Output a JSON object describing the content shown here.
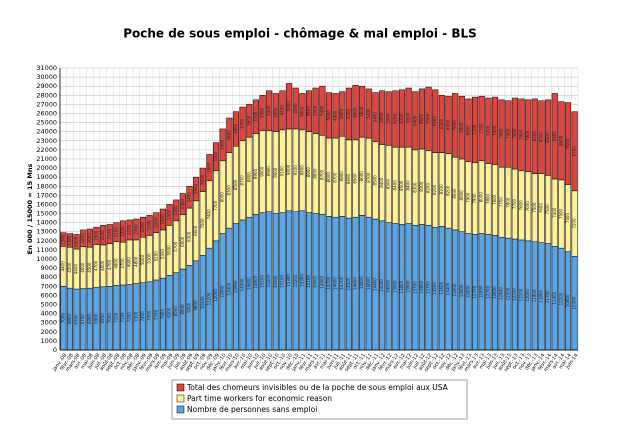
{
  "chart_data": {
    "type": "stacked_bar",
    "title": "Poche de sous emploi - chômage & mal emploi - BLS",
    "y_label": "En 000 / 15000 = 15 Mns",
    "categories": [
      "janv.-08",
      "févr.-08",
      "mars-08",
      "avr.-08",
      "mai-08",
      "juin-08",
      "juil.-08",
      "août-08",
      "sept.-08",
      "oct.-08",
      "nov.-08",
      "déc.-08",
      "janv.-09",
      "févr.-09",
      "mars-09",
      "avr.-09",
      "mai-09",
      "juin-09",
      "juil.-09",
      "août-09",
      "sept.-09",
      "oct.-09",
      "nov.-09",
      "déc.-09",
      "janv.-10",
      "févr.-10",
      "mars-10",
      "avr.-10",
      "mai-10",
      "juin-10",
      "juil.-10",
      "août-10",
      "sept.-10",
      "oct.-10",
      "nov.-10",
      "déc.-10",
      "janv.-11",
      "févr.-11",
      "mars-11",
      "avr.-11",
      "mai-11",
      "juin-11",
      "juil.-11",
      "août-11",
      "sept.-11",
      "oct.-11",
      "nov.-11",
      "déc.-11",
      "janv.-12",
      "févr.-12",
      "mars-12",
      "avr.-12",
      "mai-12",
      "juin-12",
      "juil.-12",
      "août-12",
      "sept.-12",
      "oct.-12",
      "nov.-12",
      "déc.-12",
      "janv.-13",
      "févr.-13",
      "mars-13",
      "avr.-13",
      "mai-13",
      "juin-13",
      "juil.-13",
      "août-13",
      "sept.-13",
      "oct.-13",
      "nov.-13",
      "déc.-13",
      "janv.-14",
      "févr.-14",
      "mars-14",
      "avr.-14",
      "mai-14",
      "juin-14"
    ],
    "series": [
      {
        "name": "Nombre de personnes sans emploi",
        "color": "#5aa5e6",
        "values": [
          7000,
          6800,
          6700,
          6750,
          6800,
          6900,
          6950,
          7000,
          7100,
          7150,
          7200,
          7300,
          7400,
          7500,
          7700,
          7900,
          8200,
          8500,
          8900,
          9300,
          9800,
          10400,
          11200,
          12000,
          12800,
          13400,
          13900,
          14300,
          14600,
          14900,
          15100,
          15200,
          15000,
          15100,
          15300,
          15200,
          15300,
          15100,
          15000,
          14900,
          14700,
          14600,
          14700,
          14500,
          14600,
          14800,
          14600,
          14400,
          14200,
          14000,
          13900,
          13800,
          13900,
          13700,
          13800,
          13700,
          13500,
          13600,
          13400,
          13200,
          13000,
          12800,
          12700,
          12800,
          12700,
          12600,
          12400,
          12300,
          12200,
          12100,
          12000,
          11900,
          11800,
          11700,
          11400,
          11200,
          10800,
          10300
        ]
      },
      {
        "name": "Part time workers for economic reason",
        "color": "#fff09a",
        "values": [
          4400,
          4500,
          4400,
          4600,
          4500,
          4700,
          4600,
          4700,
          4800,
          4700,
          4900,
          4800,
          5000,
          5100,
          5200,
          5300,
          5500,
          5700,
          6000,
          6300,
          6600,
          7000,
          7400,
          7700,
          8000,
          8300,
          8500,
          8700,
          8800,
          8900,
          9000,
          8900,
          9000,
          9100,
          9000,
          9100,
          8900,
          8900,
          8800,
          8700,
          8600,
          8700,
          8800,
          8600,
          8500,
          8600,
          8700,
          8500,
          8400,
          8500,
          8400,
          8500,
          8400,
          8300,
          8300,
          8200,
          8200,
          8100,
          8200,
          8000,
          8000,
          7900,
          7900,
          8000,
          7800,
          7800,
          7700,
          7800,
          7700,
          7600,
          7600,
          7500,
          7600,
          7500,
          7400,
          7500,
          7400,
          7200
        ]
      },
      {
        "name": "Total des chomeurs invisibles ou de la poche de sous emploi aux USA",
        "color": "#e0443c",
        "values": [
          1500,
          1500,
          1600,
          1850,
          2000,
          1900,
          2150,
          2100,
          2100,
          2350,
          2200,
          2300,
          2200,
          2200,
          2200,
          2300,
          2300,
          2300,
          2300,
          2400,
          2600,
          2600,
          2900,
          3100,
          3500,
          3800,
          3800,
          3700,
          3600,
          3700,
          3900,
          4400,
          4200,
          4300,
          5000,
          4500,
          4000,
          4500,
          5000,
          5400,
          5000,
          4900,
          4900,
          5700,
          6000,
          5600,
          5400,
          5400,
          5900,
          5900,
          6200,
          6300,
          6500,
          6400,
          6600,
          7000,
          6900,
          6300,
          6300,
          7000,
          6900,
          6900,
          7200,
          7100,
          7200,
          7400,
          7400,
          7300,
          7800,
          7900,
          7900,
          8200,
          8000,
          8300,
          9400,
          8600,
          9000,
          8700
        ]
      }
    ],
    "ylim": [
      0,
      31000
    ],
    "yticks": [
      0,
      1000,
      2000,
      3000,
      4000,
      5000,
      6000,
      7000,
      8000,
      9000,
      10000,
      11000,
      12000,
      13000,
      14000,
      15000,
      16000,
      17000,
      18000,
      19000,
      20000,
      21000,
      22000,
      23000,
      24000,
      25000,
      26000,
      27000,
      28000,
      29000,
      30000,
      31000
    ],
    "grid": true,
    "legend": "bottom"
  }
}
